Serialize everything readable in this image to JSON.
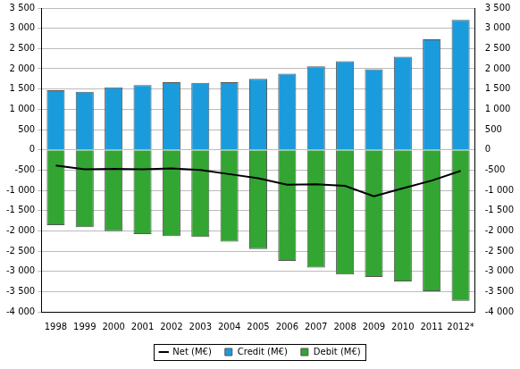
{
  "chart_data": {
    "type": "bar",
    "categories": [
      "1998",
      "1999",
      "2000",
      "2001",
      "2002",
      "2003",
      "2004",
      "2005",
      "2006",
      "2007",
      "2008",
      "2009",
      "2010",
      "2011",
      "2012*"
    ],
    "series": [
      {
        "name": "Credit (M€)",
        "type": "bar",
        "color": "#1a9bdc",
        "values": [
          1470,
          1430,
          1540,
          1600,
          1670,
          1650,
          1670,
          1750,
          1880,
          2060,
          2190,
          1990,
          2300,
          2730,
          3210
        ]
      },
      {
        "name": "Debit (M€)",
        "type": "bar",
        "color": "#33a532",
        "values": [
          -1860,
          -1910,
          -2010,
          -2080,
          -2130,
          -2150,
          -2270,
          -2450,
          -2740,
          -2910,
          -3080,
          -3140,
          -3250,
          -3490,
          -3730
        ]
      },
      {
        "name": "Net (M€)",
        "type": "line",
        "color": "#000000",
        "marker": "none",
        "line_style": "solid",
        "values": [
          -390,
          -480,
          -470,
          -480,
          -460,
          -500,
          -600,
          -700,
          -860,
          -850,
          -890,
          -1150,
          -950,
          -760,
          -520
        ]
      }
    ],
    "stacked": true,
    "grid": true,
    "legend": "bottom",
    "ylim": [
      -4000,
      3500
    ],
    "yticks": [
      {
        "value": -4000,
        "label": "-4 000"
      },
      {
        "value": -3500,
        "label": "-3 500"
      },
      {
        "value": -3000,
        "label": "-3 000"
      },
      {
        "value": -2500,
        "label": "-2 500"
      },
      {
        "value": -2000,
        "label": "-2 000"
      },
      {
        "value": -1500,
        "label": "-1 500"
      },
      {
        "value": -1000,
        "label": "-1 000"
      },
      -500,
      0,
      500,
      {
        "value": 1000,
        "label": "1 000"
      },
      {
        "value": 1500,
        "label": "1 500"
      },
      {
        "value": 2000,
        "label": "2 000"
      },
      {
        "value": 2500,
        "label": "2 500"
      },
      {
        "value": 3000,
        "label": "3 000"
      },
      {
        "value": 3500,
        "label": "3 500"
      }
    ],
    "y2lim": [
      -4000,
      3500
    ],
    "y2ticks": [
      {
        "value": -4000,
        "label": "-4 000"
      },
      {
        "value": -3500,
        "label": "-3 500"
      },
      {
        "value": -3000,
        "label": "-3 000"
      },
      {
        "value": -2500,
        "label": "-2 500"
      },
      {
        "value": -2000,
        "label": "-2 000"
      },
      {
        "value": -1500,
        "label": "-1 500"
      },
      {
        "value": -1000,
        "label": "-1 000"
      },
      -500,
      0,
      500,
      {
        "value": 1000,
        "label": "1 000"
      },
      {
        "value": 1500,
        "label": "1 500"
      },
      {
        "value": 2000,
        "label": "2 000"
      },
      {
        "value": 2500,
        "label": "2 500"
      },
      {
        "value": 3000,
        "label": "3 000"
      },
      {
        "value": 3500,
        "label": "3 500"
      }
    ]
  }
}
